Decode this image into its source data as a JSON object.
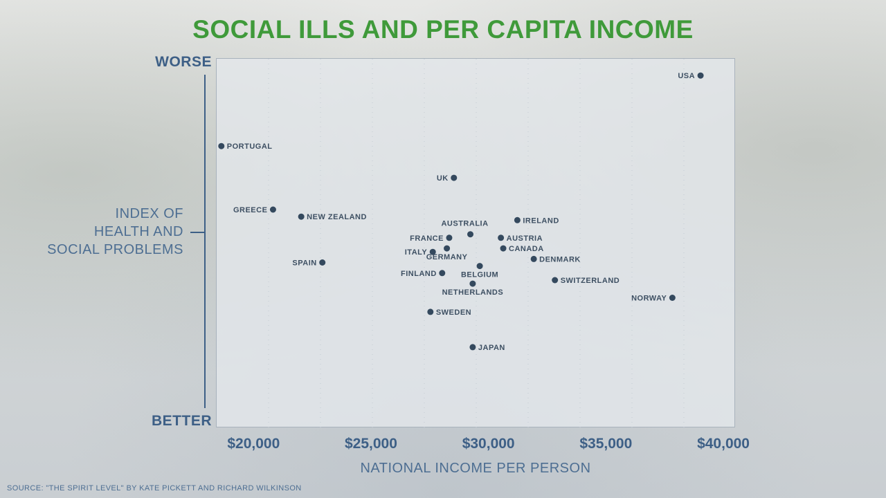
{
  "title": "SOCIAL ILLS AND PER CAPITA INCOME",
  "source": "SOURCE: \"THE SPIRIT LEVEL\" BY KATE PICKETT AND RICHARD WILKINSON",
  "colors": {
    "title": "#3f9a3a",
    "axis_text": "#3d5f86",
    "point": "#34495e",
    "label": "#3d4f62"
  },
  "chart_data": {
    "type": "scatter",
    "title": "SOCIAL ILLS AND PER CAPITA INCOME",
    "xlabel": "NATIONAL INCOME PER PERSON",
    "ylabel": "INDEX OF HEALTH AND SOCIAL PROBLEMS",
    "ylabel_lines": [
      "INDEX OF",
      "HEALTH AND",
      "SOCIAL PROBLEMS"
    ],
    "y_top_label": "WORSE",
    "y_bottom_label": "BETTER",
    "x_ticks": [
      {
        "value": 20000,
        "label": "$20,000"
      },
      {
        "value": 25000,
        "label": "$25,000"
      },
      {
        "value": 30000,
        "label": "$30,000"
      },
      {
        "value": 35000,
        "label": "$35,000"
      },
      {
        "value": 40000,
        "label": "$40,000"
      }
    ],
    "xlim": [
      18400,
      40500
    ],
    "ylim": [
      0,
      100
    ],
    "grid": true,
    "points": [
      {
        "name": "USA",
        "x": 39000,
        "y": 98,
        "label_side": "left"
      },
      {
        "name": "PORTUGAL",
        "x": 18600,
        "y": 78,
        "label_side": "right"
      },
      {
        "name": "UK",
        "x": 28500,
        "y": 69,
        "label_side": "left"
      },
      {
        "name": "GREECE",
        "x": 20800,
        "y": 60,
        "label_side": "left"
      },
      {
        "name": "NEW ZEALAND",
        "x": 22000,
        "y": 58,
        "label_side": "right"
      },
      {
        "name": "IRELAND",
        "x": 31200,
        "y": 57,
        "label_side": "right"
      },
      {
        "name": "AUSTRALIA",
        "x": 29200,
        "y": 53,
        "label_side": "above"
      },
      {
        "name": "AUSTRIA",
        "x": 30500,
        "y": 52,
        "label_side": "right"
      },
      {
        "name": "FRANCE",
        "x": 28300,
        "y": 52,
        "label_side": "left"
      },
      {
        "name": "CANADA",
        "x": 30600,
        "y": 49,
        "label_side": "right"
      },
      {
        "name": "ITALY",
        "x": 27600,
        "y": 48,
        "label_side": "left"
      },
      {
        "name": "GERMANY",
        "x": 28200,
        "y": 49,
        "label_side": "below"
      },
      {
        "name": "DENMARK",
        "x": 31900,
        "y": 46,
        "label_side": "right"
      },
      {
        "name": "SPAIN",
        "x": 22900,
        "y": 45,
        "label_side": "left"
      },
      {
        "name": "BELGIUM",
        "x": 29600,
        "y": 44,
        "label_side": "below"
      },
      {
        "name": "FINLAND",
        "x": 28000,
        "y": 42,
        "label_side": "left"
      },
      {
        "name": "SWITZERLAND",
        "x": 32800,
        "y": 40,
        "label_side": "right"
      },
      {
        "name": "NETHERLANDS",
        "x": 29300,
        "y": 39,
        "label_side": "below"
      },
      {
        "name": "NORWAY",
        "x": 37800,
        "y": 35,
        "label_side": "left"
      },
      {
        "name": "SWEDEN",
        "x": 27500,
        "y": 31,
        "label_side": "right"
      },
      {
        "name": "JAPAN",
        "x": 29300,
        "y": 21,
        "label_side": "right"
      }
    ]
  }
}
